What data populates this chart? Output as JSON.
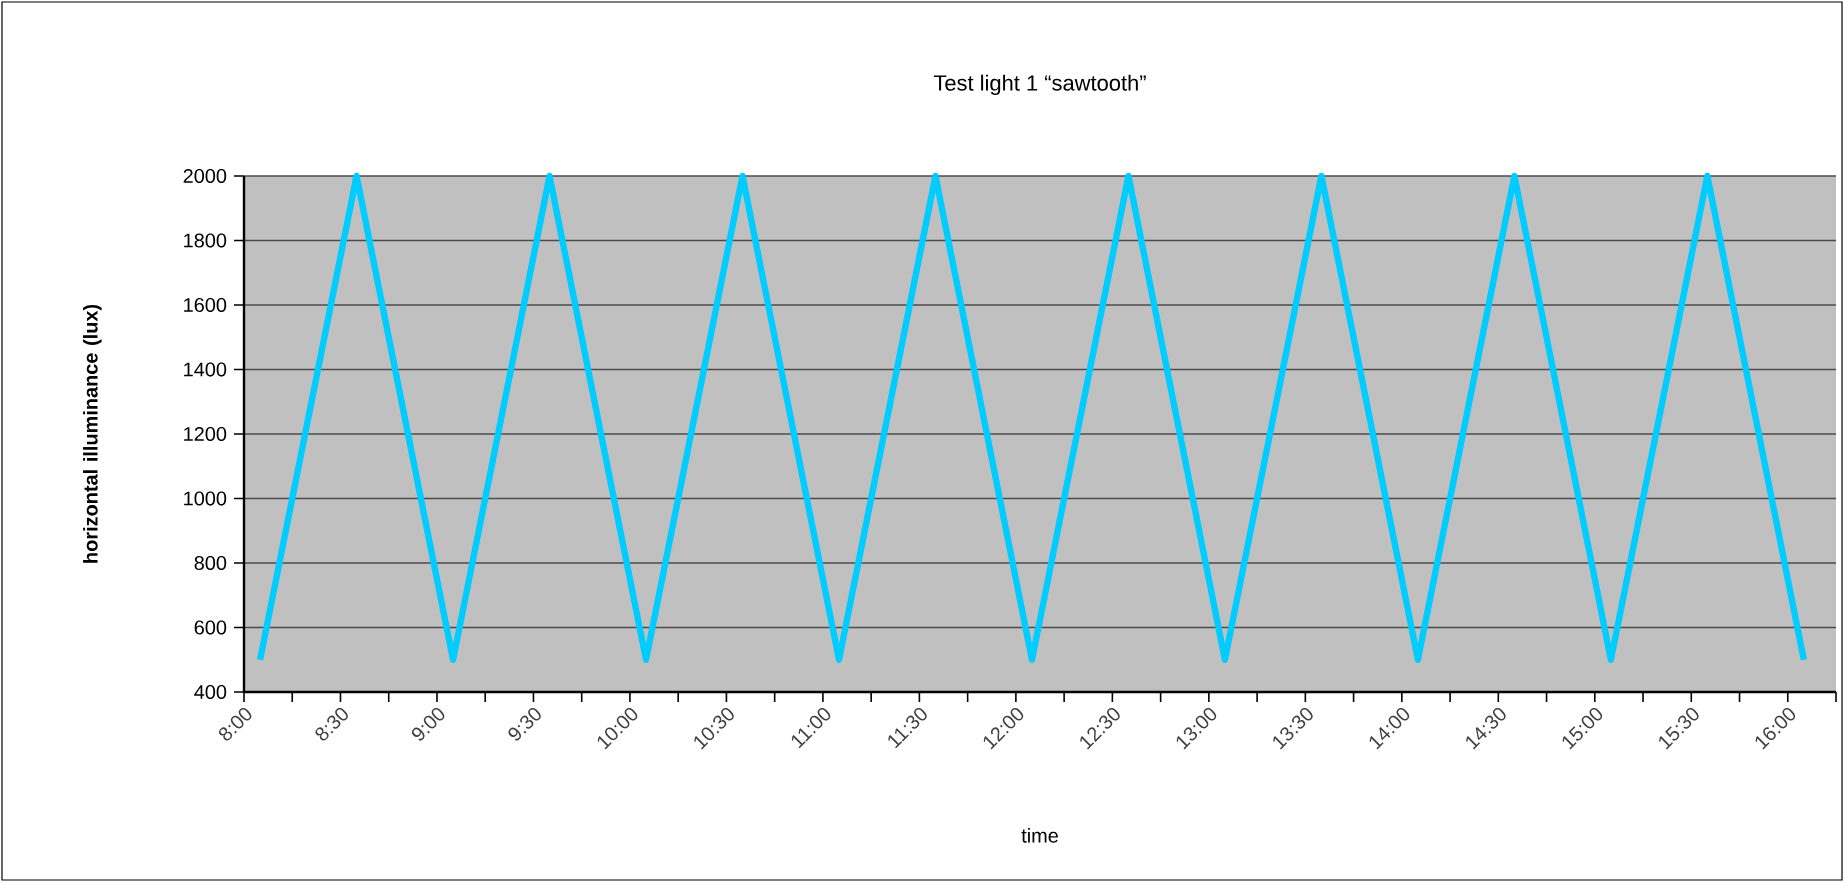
{
  "chart_data": {
    "type": "line",
    "title": "Test light 1 “sawtooth”",
    "xlabel": "time",
    "ylabel": "horizontal illuminance (lux)",
    "x": [
      8.0833,
      8.5833,
      9.0833,
      9.5833,
      10.0833,
      10.5833,
      11.0833,
      11.5833,
      12.0833,
      12.5833,
      13.0833,
      13.5833,
      14.0833,
      14.5833,
      15.0833,
      15.5833,
      16.0833
    ],
    "series": [
      {
        "color": "#00ccff",
        "values": [
          500,
          2000,
          500,
          2000,
          500,
          2000,
          500,
          2000,
          500,
          2000,
          500,
          2000,
          500,
          2000,
          500,
          2000,
          500
        ]
      }
    ],
    "xlim": [
      8,
      16.25
    ],
    "ylim": [
      400,
      2000
    ],
    "xticks": [
      {
        "value": 8,
        "label": "8:00"
      },
      {
        "value": 8.25,
        "label": null
      },
      {
        "value": 8.5,
        "label": "8:30"
      },
      {
        "value": 8.75,
        "label": null
      },
      {
        "value": 9,
        "label": "9:00"
      },
      {
        "value": 9.25,
        "label": null
      },
      {
        "value": 9.5,
        "label": "9:30"
      },
      {
        "value": 9.75,
        "label": null
      },
      {
        "value": 10,
        "label": "10:00"
      },
      {
        "value": 10.25,
        "label": null
      },
      {
        "value": 10.5,
        "label": "10:30"
      },
      {
        "value": 10.75,
        "label": null
      },
      {
        "value": 11,
        "label": "11:00"
      },
      {
        "value": 11.25,
        "label": null
      },
      {
        "value": 11.5,
        "label": "11:30"
      },
      {
        "value": 11.75,
        "label": null
      },
      {
        "value": 12,
        "label": "12:00"
      },
      {
        "value": 12.25,
        "label": null
      },
      {
        "value": 12.5,
        "label": "12:30"
      },
      {
        "value": 12.75,
        "label": null
      },
      {
        "value": 13,
        "label": "13:00"
      },
      {
        "value": 13.25,
        "label": null
      },
      {
        "value": 13.5,
        "label": "13:30"
      },
      {
        "value": 13.75,
        "label": null
      },
      {
        "value": 14,
        "label": "14:00"
      },
      {
        "value": 14.25,
        "label": null
      },
      {
        "value": 14.5,
        "label": "14:30"
      },
      {
        "value": 14.75,
        "label": null
      },
      {
        "value": 15,
        "label": "15:00"
      },
      {
        "value": 15.25,
        "label": null
      },
      {
        "value": 15.5,
        "label": "15:30"
      },
      {
        "value": 15.75,
        "label": null
      },
      {
        "value": 16,
        "label": "16:00"
      },
      {
        "value": 16.25,
        "label": null
      }
    ],
    "yticks": [
      400,
      600,
      800,
      1000,
      1200,
      1400,
      1600,
      1800,
      2000
    ],
    "grid": "y",
    "marker": "none",
    "line_style": "solid"
  }
}
